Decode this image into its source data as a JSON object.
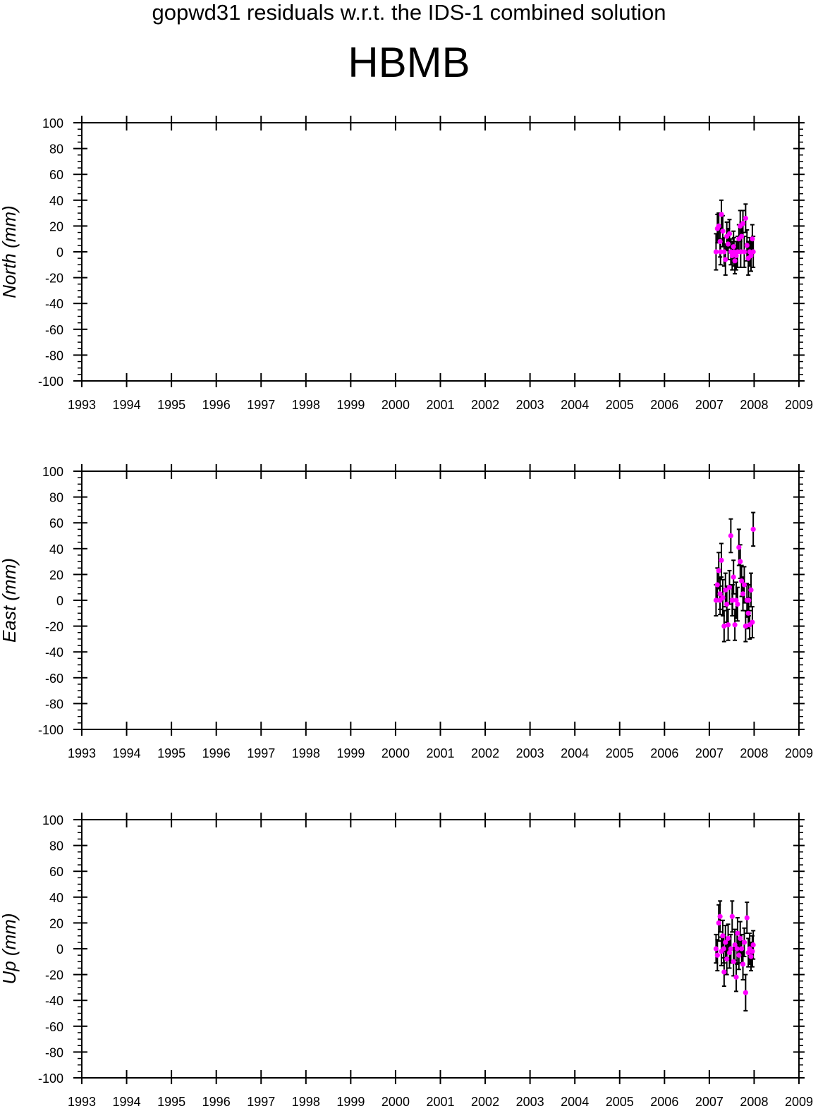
{
  "header": {
    "subtitle": "gopwd31 residuals w.r.t. the IDS-1 combined solution",
    "station": "HBMB"
  },
  "colors": {
    "point": "#ff00ff",
    "errorbar": "#000000",
    "axis": "#000000"
  },
  "chart_data": [
    {
      "type": "scatter",
      "ylabel": "North (mm)",
      "xlim": [
        1993,
        2009
      ],
      "ylim": [
        -100,
        100
      ],
      "x_ticks": [
        "1993",
        "1994",
        "1995",
        "1996",
        "1997",
        "1998",
        "1999",
        "2000",
        "2001",
        "2002",
        "2003",
        "2004",
        "2005",
        "2006",
        "2007",
        "2008",
        "2009"
      ],
      "y_ticks": [
        "100",
        "80",
        "60",
        "40",
        "20",
        "0",
        "-20",
        "-40",
        "-60",
        "-80",
        "-100"
      ],
      "grid": false,
      "series": [
        {
          "points": [
            {
              "x": 2007.15,
              "y": 0,
              "err": 14
            },
            {
              "x": 2007.18,
              "y": 18,
              "err": 11
            },
            {
              "x": 2007.21,
              "y": 20,
              "err": 10
            },
            {
              "x": 2007.24,
              "y": 8,
              "err": 12
            },
            {
              "x": 2007.27,
              "y": 29,
              "err": 11
            },
            {
              "x": 2007.3,
              "y": 16,
              "err": 12
            },
            {
              "x": 2007.33,
              "y": 0,
              "err": 11
            },
            {
              "x": 2007.36,
              "y": -6,
              "err": 12
            },
            {
              "x": 2007.39,
              "y": 12,
              "err": 11
            },
            {
              "x": 2007.42,
              "y": 6,
              "err": 12
            },
            {
              "x": 2007.45,
              "y": 14,
              "err": 11
            },
            {
              "x": 2007.48,
              "y": 0,
              "err": 10
            },
            {
              "x": 2007.51,
              "y": -3,
              "err": 11
            },
            {
              "x": 2007.54,
              "y": 4,
              "err": 12
            },
            {
              "x": 2007.57,
              "y": -7,
              "err": 10
            },
            {
              "x": 2007.6,
              "y": -3,
              "err": 11
            },
            {
              "x": 2007.63,
              "y": 0,
              "err": 12
            },
            {
              "x": 2007.66,
              "y": 10,
              "err": 11
            },
            {
              "x": 2007.69,
              "y": 20,
              "err": 12
            },
            {
              "x": 2007.72,
              "y": 12,
              "err": 11
            },
            {
              "x": 2007.75,
              "y": 22,
              "err": 10
            },
            {
              "x": 2007.78,
              "y": 0,
              "err": 12
            },
            {
              "x": 2007.81,
              "y": 26,
              "err": 11
            },
            {
              "x": 2007.84,
              "y": 5,
              "err": 12
            },
            {
              "x": 2007.87,
              "y": -5,
              "err": 13
            },
            {
              "x": 2007.9,
              "y": 0,
              "err": 11
            },
            {
              "x": 2007.93,
              "y": -3,
              "err": 12
            },
            {
              "x": 2007.96,
              "y": 10,
              "err": 11
            },
            {
              "x": 2007.98,
              "y": 0,
              "err": 12
            },
            {
              "x": 2007.25,
              "y": 0,
              "err": 10
            },
            {
              "x": 2007.55,
              "y": 0,
              "err": 11
            },
            {
              "x": 2007.7,
              "y": 0,
              "err": 12
            }
          ]
        }
      ]
    },
    {
      "type": "scatter",
      "ylabel": "East (mm)",
      "xlim": [
        1993,
        2009
      ],
      "ylim": [
        -100,
        100
      ],
      "x_ticks": [
        "1993",
        "1994",
        "1995",
        "1996",
        "1997",
        "1998",
        "1999",
        "2000",
        "2001",
        "2002",
        "2003",
        "2004",
        "2005",
        "2006",
        "2007",
        "2008",
        "2009"
      ],
      "y_ticks": [
        "100",
        "80",
        "60",
        "40",
        "20",
        "0",
        "-20",
        "-40",
        "-60",
        "-80",
        "-100"
      ],
      "grid": false,
      "series": [
        {
          "points": [
            {
              "x": 2007.15,
              "y": 0,
              "err": 12
            },
            {
              "x": 2007.18,
              "y": 12,
              "err": 13
            },
            {
              "x": 2007.21,
              "y": 23,
              "err": 14
            },
            {
              "x": 2007.24,
              "y": 5,
              "err": 12
            },
            {
              "x": 2007.27,
              "y": 31,
              "err": 13
            },
            {
              "x": 2007.3,
              "y": 2,
              "err": 14
            },
            {
              "x": 2007.33,
              "y": -20,
              "err": 12
            },
            {
              "x": 2007.36,
              "y": 8,
              "err": 13
            },
            {
              "x": 2007.39,
              "y": -3,
              "err": 14
            },
            {
              "x": 2007.42,
              "y": -19,
              "err": 12
            },
            {
              "x": 2007.45,
              "y": 10,
              "err": 13
            },
            {
              "x": 2007.48,
              "y": 50,
              "err": 13
            },
            {
              "x": 2007.51,
              "y": 0,
              "err": 12
            },
            {
              "x": 2007.54,
              "y": 18,
              "err": 13
            },
            {
              "x": 2007.57,
              "y": -19,
              "err": 12
            },
            {
              "x": 2007.6,
              "y": 0,
              "err": 14
            },
            {
              "x": 2007.63,
              "y": -3,
              "err": 13
            },
            {
              "x": 2007.66,
              "y": 41,
              "err": 14
            },
            {
              "x": 2007.69,
              "y": 30,
              "err": 13
            },
            {
              "x": 2007.72,
              "y": 15,
              "err": 12
            },
            {
              "x": 2007.75,
              "y": 5,
              "err": 13
            },
            {
              "x": 2007.78,
              "y": 12,
              "err": 14
            },
            {
              "x": 2007.81,
              "y": -20,
              "err": 12
            },
            {
              "x": 2007.84,
              "y": 0,
              "err": 13
            },
            {
              "x": 2007.87,
              "y": -10,
              "err": 12
            },
            {
              "x": 2007.9,
              "y": -19,
              "err": 11
            },
            {
              "x": 2007.93,
              "y": 8,
              "err": 13
            },
            {
              "x": 2007.96,
              "y": -17,
              "err": 12
            },
            {
              "x": 2007.98,
              "y": 55,
              "err": 13
            },
            {
              "x": 2007.24,
              "y": 0,
              "err": 11
            },
            {
              "x": 2007.52,
              "y": 0,
              "err": 12
            },
            {
              "x": 2007.88,
              "y": 0,
              "err": 12
            }
          ]
        }
      ]
    },
    {
      "type": "scatter",
      "ylabel": "Up (mm)",
      "xlim": [
        1993,
        2009
      ],
      "ylim": [
        -100,
        100
      ],
      "x_ticks": [
        "1993",
        "1994",
        "1995",
        "1996",
        "1997",
        "1998",
        "1999",
        "2000",
        "2001",
        "2002",
        "2003",
        "2004",
        "2005",
        "2006",
        "2007",
        "2008",
        "2009"
      ],
      "y_ticks": [
        "100",
        "80",
        "60",
        "40",
        "20",
        "0",
        "-20",
        "-40",
        "-60",
        "-80",
        "-100"
      ],
      "grid": false,
      "series": [
        {
          "points": [
            {
              "x": 2007.15,
              "y": 0,
              "err": 11
            },
            {
              "x": 2007.18,
              "y": -5,
              "err": 12
            },
            {
              "x": 2007.21,
              "y": 20,
              "err": 14
            },
            {
              "x": 2007.24,
              "y": 25,
              "err": 12
            },
            {
              "x": 2007.27,
              "y": -2,
              "err": 11
            },
            {
              "x": 2007.3,
              "y": 10,
              "err": 12
            },
            {
              "x": 2007.33,
              "y": -18,
              "err": 11
            },
            {
              "x": 2007.36,
              "y": 5,
              "err": 13
            },
            {
              "x": 2007.39,
              "y": -8,
              "err": 12
            },
            {
              "x": 2007.42,
              "y": 8,
              "err": 11
            },
            {
              "x": 2007.45,
              "y": -3,
              "err": 12
            },
            {
              "x": 2007.48,
              "y": 0,
              "err": 11
            },
            {
              "x": 2007.51,
              "y": 25,
              "err": 12
            },
            {
              "x": 2007.54,
              "y": -10,
              "err": 11
            },
            {
              "x": 2007.57,
              "y": 3,
              "err": 12
            },
            {
              "x": 2007.6,
              "y": -22,
              "err": 11
            },
            {
              "x": 2007.63,
              "y": 12,
              "err": 12
            },
            {
              "x": 2007.66,
              "y": -5,
              "err": 11
            },
            {
              "x": 2007.69,
              "y": 8,
              "err": 13
            },
            {
              "x": 2007.72,
              "y": 0,
              "err": 11
            },
            {
              "x": 2007.75,
              "y": -12,
              "err": 12
            },
            {
              "x": 2007.78,
              "y": 5,
              "err": 11
            },
            {
              "x": 2007.81,
              "y": -34,
              "err": 14
            },
            {
              "x": 2007.84,
              "y": 24,
              "err": 12
            },
            {
              "x": 2007.87,
              "y": -3,
              "err": 11
            },
            {
              "x": 2007.9,
              "y": 0,
              "err": 12
            },
            {
              "x": 2007.93,
              "y": -6,
              "err": 11
            },
            {
              "x": 2007.96,
              "y": -2,
              "err": 12
            },
            {
              "x": 2007.98,
              "y": 3,
              "err": 11
            },
            {
              "x": 2007.32,
              "y": 0,
              "err": 11
            },
            {
              "x": 2007.62,
              "y": 0,
              "err": 12
            }
          ]
        }
      ]
    }
  ]
}
